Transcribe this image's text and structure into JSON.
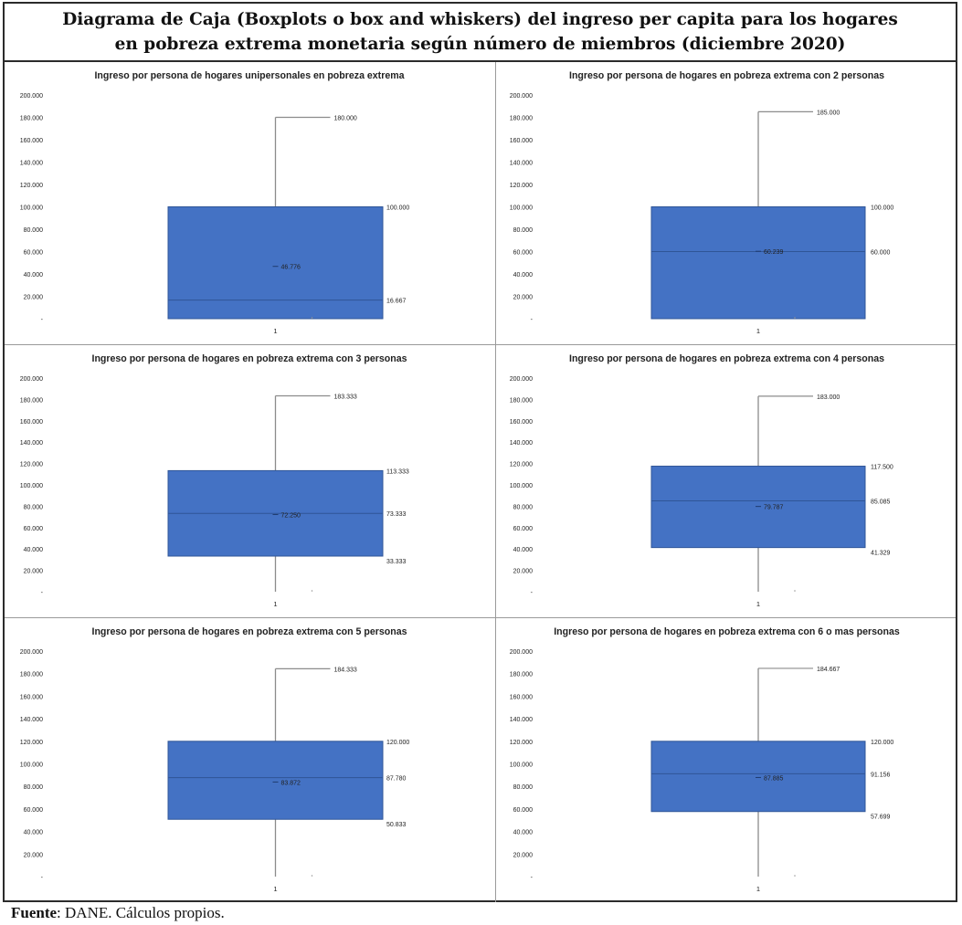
{
  "title_line1": "Diagrama de Caja (Boxplots o box and whiskers) del ingreso per capita para los hogares",
  "title_line2": "en pobreza extrema monetaria según número de miembros (diciembre 2020)",
  "footer": {
    "label": "Fuente",
    "text": ": DANE. Cálculos propios."
  },
  "colors": {
    "box": "#4472c4",
    "box_border": "#2f5597",
    "whisker": "#8c8c8c",
    "text": "#222222"
  },
  "chart_data": [
    {
      "type": "box",
      "title": "Ingreso por persona de hogares unipersonales en pobreza extrema",
      "y_ticks": [
        "-",
        "20.000",
        "40.000",
        "60.000",
        "80.000",
        "100.000",
        "120.000",
        "140.000",
        "160.000",
        "180.000",
        "200.000"
      ],
      "ylim": [
        0,
        200000
      ],
      "x_label": "1",
      "min": 0,
      "q1": 0,
      "median": 16667,
      "mean": 46776,
      "q3": 100000,
      "max": 180000,
      "labels": {
        "max": "180.000",
        "q3": "100.000",
        "mean": "46.776",
        "median": "16.667"
      }
    },
    {
      "type": "box",
      "title": "Ingreso por persona de hogares en pobreza extrema con 2 personas",
      "y_ticks": [
        "-",
        "20.000",
        "40.000",
        "60.000",
        "80.000",
        "100.000",
        "120.000",
        "140.000",
        "160.000",
        "180.000",
        "200.000"
      ],
      "ylim": [
        0,
        200000
      ],
      "x_label": "1",
      "min": 0,
      "q1": 0,
      "median": 60000,
      "mean": 60239,
      "q3": 100000,
      "max": 185000,
      "labels": {
        "max": "185.000",
        "q3": "100.000",
        "mean": "60.239",
        "median": "60.000"
      }
    },
    {
      "type": "box",
      "title": "Ingreso por persona de hogares en pobreza extrema con 3 personas",
      "y_ticks": [
        "-",
        "20.000",
        "40.000",
        "60.000",
        "80.000",
        "100.000",
        "120.000",
        "140.000",
        "160.000",
        "180.000",
        "200.000"
      ],
      "ylim": [
        0,
        200000
      ],
      "x_label": "1",
      "min": 0,
      "q1": 33333,
      "median": 73333,
      "mean": 72250,
      "q3": 113333,
      "max": 183333,
      "labels": {
        "max": "183.333",
        "q3": "113.333",
        "mean": "72.250",
        "median": "73.333",
        "q1": "33.333"
      }
    },
    {
      "type": "box",
      "title": "Ingreso por persona de hogares en pobreza extrema con 4 personas",
      "y_ticks": [
        "-",
        "20.000",
        "40.000",
        "60.000",
        "80.000",
        "100.000",
        "120.000",
        "140.000",
        "160.000",
        "180.000",
        "200.000"
      ],
      "ylim": [
        0,
        200000
      ],
      "x_label": "1",
      "min": 0,
      "q1": 41329,
      "median": 85085,
      "mean": 79787,
      "q3": 117500,
      "max": 183000,
      "labels": {
        "max": "183.000",
        "q3": "117.500",
        "mean": "79.787",
        "median": "85.085",
        "q1": "41.329"
      }
    },
    {
      "type": "box",
      "title": "Ingreso por persona de hogares en pobreza extrema con 5 personas",
      "y_ticks": [
        "-",
        "20.000",
        "40.000",
        "60.000",
        "80.000",
        "100.000",
        "120.000",
        "140.000",
        "160.000",
        "180.000",
        "200.000"
      ],
      "ylim": [
        0,
        200000
      ],
      "x_label": "1",
      "min": 0,
      "q1": 50833,
      "median": 87780,
      "mean": 83872,
      "q3": 120000,
      "max": 184333,
      "labels": {
        "max": "184.333",
        "q3": "120.000",
        "mean": "83.872",
        "median": "87.780",
        "q1": "50.833"
      }
    },
    {
      "type": "box",
      "title": "Ingreso por persona de hogares en pobreza extrema con 6 o mas personas",
      "y_ticks": [
        "-",
        "20.000",
        "40.000",
        "60.000",
        "80.000",
        "100.000",
        "120.000",
        "140.000",
        "160.000",
        "180.000",
        "200.000"
      ],
      "ylim": [
        0,
        200000
      ],
      "x_label": "1",
      "min": 0,
      "q1": 57699,
      "median": 91156,
      "mean": 87885,
      "q3": 120000,
      "max": 184667,
      "labels": {
        "max": "184.667",
        "q3": "120.000",
        "mean": "87.885",
        "median": "91.156",
        "q1": "57.699"
      }
    }
  ]
}
